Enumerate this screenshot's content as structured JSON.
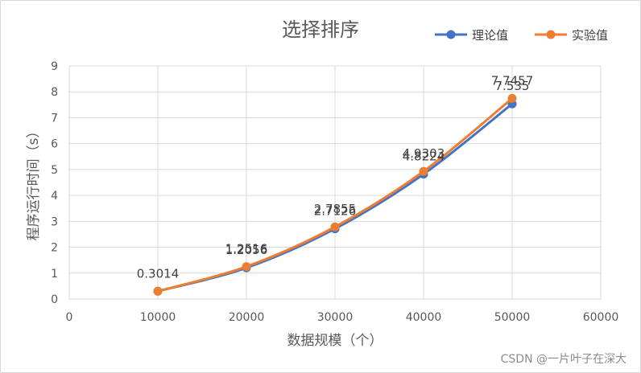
{
  "watermark": "CSDN @一片叶子在深大",
  "chart_data": {
    "type": "line",
    "title": "选择排序",
    "xlabel": "数据规模（个）",
    "ylabel": "程序运行时间（s）",
    "xlim": [
      0,
      60000
    ],
    "ylim": [
      0,
      9
    ],
    "xticks": [
      "0",
      "10000",
      "20000",
      "30000",
      "40000",
      "50000",
      "60000"
    ],
    "yticks": [
      "0",
      "1",
      "2",
      "3",
      "4",
      "5",
      "6",
      "7",
      "8",
      "9"
    ],
    "x": [
      10000,
      20000,
      30000,
      40000,
      50000
    ],
    "grid": true,
    "legend_position": "top-right",
    "series": [
      {
        "name": "理论值",
        "color": "#4472C4",
        "values": [
          0.3014,
          1.2056,
          2.7126,
          4.8224,
          7.535
        ],
        "labels": [
          "",
          "1.2056",
          "2.7126",
          "4.8224",
          "7.535"
        ]
      },
      {
        "name": "实验值",
        "color": "#ED7D31",
        "values": [
          0.3014,
          1.2516,
          2.7855,
          4.9303,
          7.7457
        ],
        "labels": [
          "0.3014",
          "1.2516",
          "2.7855",
          "4.9303",
          "7.7457"
        ]
      }
    ]
  }
}
